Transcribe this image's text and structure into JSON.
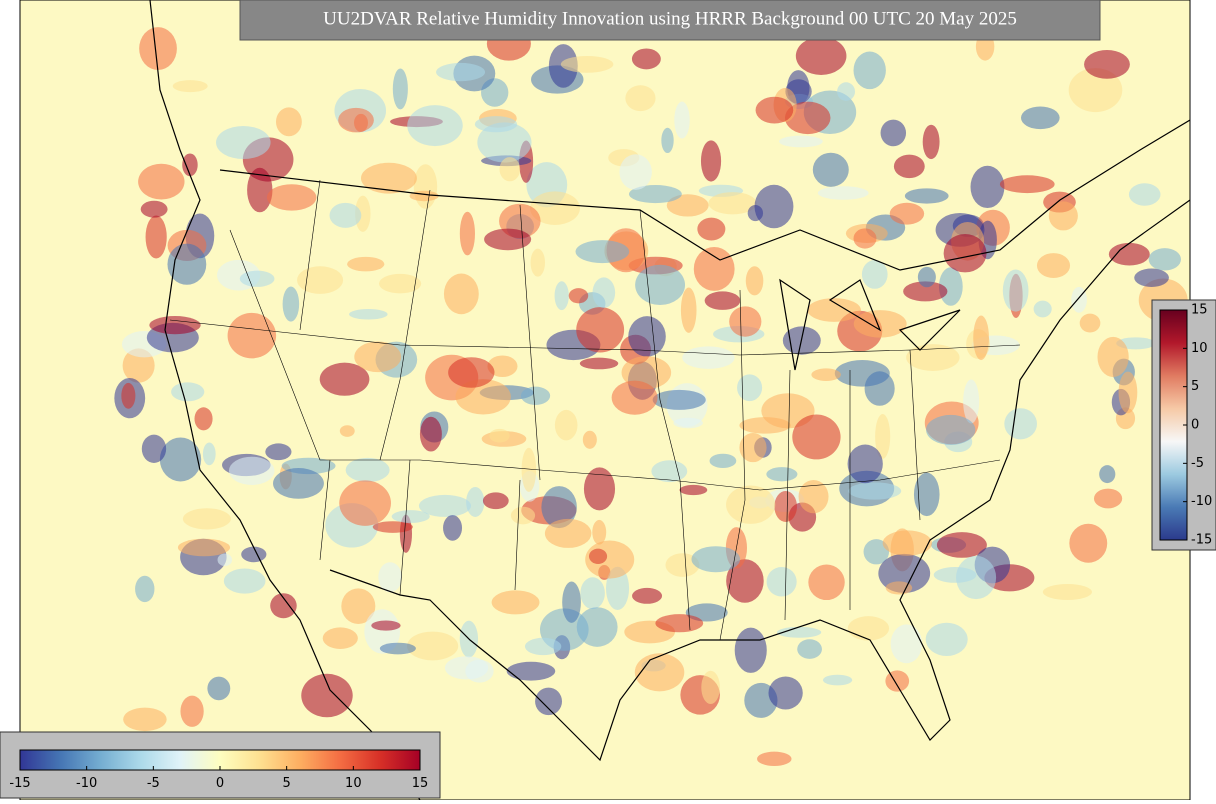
{
  "title": "UU2DVAR Relative Humidity Innovation using HRRR Background 00 UTC 20 May 2025",
  "colorbars": [
    {
      "orientation": "vertical",
      "lim": [
        -15,
        15
      ],
      "ticks": [
        15,
        10,
        5,
        0,
        -5,
        -10,
        -15
      ],
      "colors": [
        "#2b3a8c",
        "#4a7ab5",
        "#9ccae0",
        "#f7f7f7",
        "#f6c9a6",
        "#e07b61",
        "#b2182b",
        "#67001f"
      ]
    },
    {
      "orientation": "horizontal",
      "lim": [
        -15,
        15
      ],
      "ticks": [
        -15,
        -10,
        -5,
        0,
        5,
        10,
        15
      ],
      "colors": [
        "#313695",
        "#4575b4",
        "#74add1",
        "#abd9e9",
        "#e0f3f8",
        "#fefec0",
        "#fee090",
        "#fdae61",
        "#f46d43",
        "#d73027",
        "#a50026"
      ]
    }
  ]
}
